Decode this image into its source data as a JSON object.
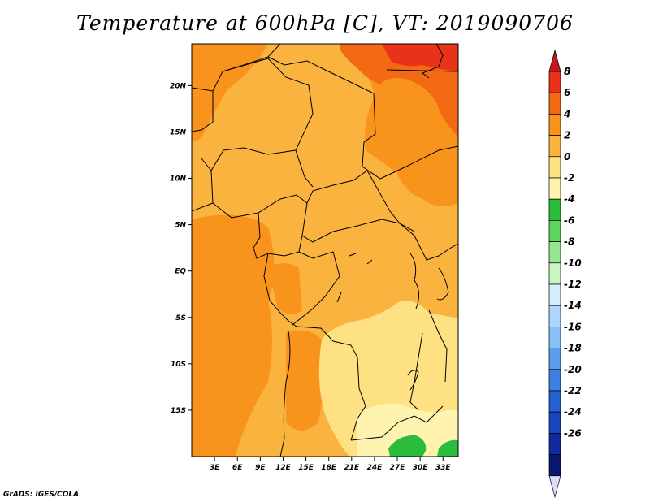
{
  "title": "Temperature at 600hPa [C], VT: 2019090706",
  "credit": "GrADS: IGES/COLA",
  "map": {
    "lat_labels": [
      "20N",
      "15N",
      "10N",
      "5N",
      "EQ",
      "5S",
      "10S",
      "15S"
    ],
    "lat_values": [
      20,
      15,
      10,
      5,
      0,
      -5,
      -10,
      -15
    ],
    "lon_labels": [
      "3E",
      "6E",
      "9E",
      "12E",
      "15E",
      "18E",
      "21E",
      "24E",
      "27E",
      "30E",
      "33E"
    ],
    "lon_values": [
      3,
      6,
      9,
      12,
      15,
      18,
      21,
      24,
      27,
      30,
      33
    ],
    "lat_range": [
      -20,
      24.5
    ],
    "lon_range": [
      0,
      35
    ]
  },
  "colorbar": {
    "labels": [
      "8",
      "6",
      "4",
      "2",
      "0",
      "-2",
      "-4",
      "-6",
      "-8",
      "-10",
      "-12",
      "-14",
      "-16",
      "-18",
      "-20",
      "-22",
      "-24",
      "-26"
    ],
    "colors": [
      "#e8331a",
      "#f26a13",
      "#f8931c",
      "#fbb33f",
      "#fde182",
      "#fff3b0",
      "#2cbc3c",
      "#5ed35d",
      "#97e58e",
      "#c9f5c2",
      "#d4eefe",
      "#acd6fa",
      "#88bff5",
      "#5a9eee",
      "#3c80e3",
      "#2560d3",
      "#1a44bb",
      "#0f2a9e",
      "#0b1670"
    ],
    "over_color": "#c4161c",
    "under_color": "#dcdcf8"
  }
}
